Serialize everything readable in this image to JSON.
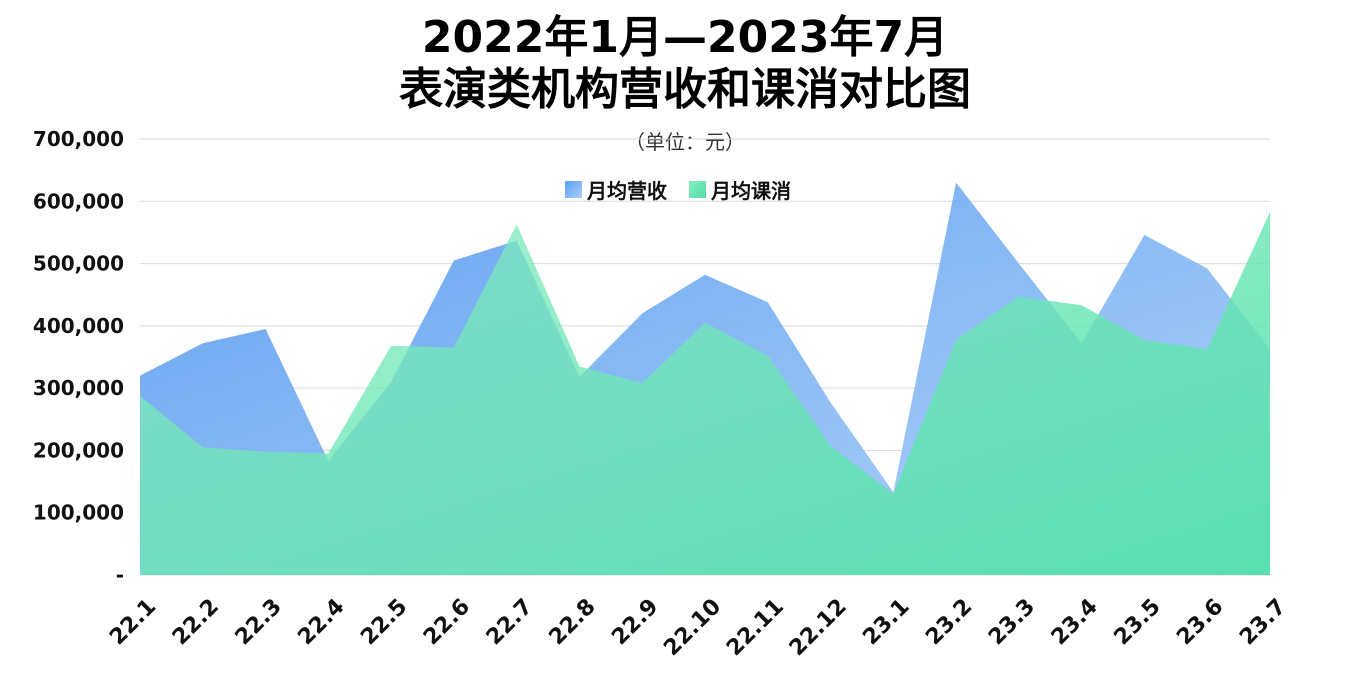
{
  "chart_data": {
    "type": "area",
    "title_line1": "2022年1月—2023年7月",
    "title_line2": "表演类机构营收和课消对比图",
    "subtitle": "（单位：元）",
    "categories": [
      "22.1",
      "22.2",
      "22.3",
      "22.4",
      "22.5",
      "22.6",
      "22.7",
      "22.8",
      "22.9",
      "22.10",
      "22.11",
      "22.12",
      "23.1",
      "23.2",
      "23.3",
      "23.4",
      "23.5",
      "23.6",
      "23.7"
    ],
    "series": [
      {
        "name": "月均营收",
        "color_top": "#5b9cf0",
        "color_bottom": "#a9cff7",
        "values": [
          320000,
          372000,
          395000,
          183000,
          310000,
          505000,
          537000,
          318000,
          420000,
          482000,
          438000,
          277000,
          133000,
          630000,
          500000,
          372000,
          546000,
          492000,
          363000
        ]
      },
      {
        "name": "月均课消",
        "color_top": "#86ecc0",
        "color_bottom": "#4fe0a8",
        "values": [
          288000,
          205000,
          198000,
          195000,
          368000,
          365000,
          563000,
          335000,
          308000,
          405000,
          352000,
          207000,
          130000,
          378000,
          447000,
          433000,
          377000,
          362000,
          583000
        ]
      }
    ],
    "y_ticks": [
      "-",
      "100,000",
      "200,000",
      "300,000",
      "400,000",
      "500,000",
      "600,000",
      "700,000"
    ],
    "ylim": [
      0,
      700000
    ],
    "grid": true,
    "legend_position": "top-center"
  }
}
